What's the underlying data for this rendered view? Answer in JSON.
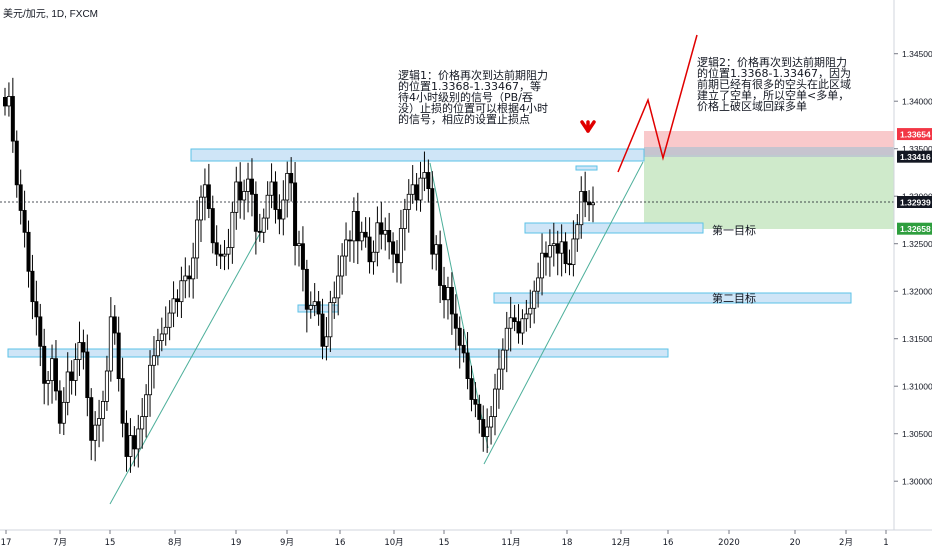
{
  "symbol_label": "美元/加元, 1D, FXCM",
  "annotations": {
    "note1": "逻辑1：价格再次到达前期阻力的位置1.3368-1.33467，等待4小时级别的信号（PB/吞没）止损的位置可以根据4小时的信号，相应的设置止损点",
    "note2": "逻辑2：价格再次到达前期阻力的位置1.3368-1.33467，因为前期已经有很多的空头在此区域建立了空单，所以空单<多单，价格上破区域回踩多单",
    "target1": "第一目标",
    "target2": "第二目标"
  },
  "colors": {
    "up_candle": "#ffffff",
    "down_candle": "#000000",
    "zone_fill": "#cfe5f7",
    "zone_stroke": "#5bc2e7",
    "trendline": "#4caf9a",
    "arrow": "#e00000",
    "stop_zone": "#f9c9cb",
    "profit_zone": "#cfeacb",
    "stop_badge": "#f23645",
    "target_badge": "#2e9e3e",
    "price_badge": "#131722"
  },
  "chart_data": {
    "type": "candlestick",
    "x_tick_labels": [
      "17",
      "7月",
      "15",
      "8月",
      "19",
      "9月",
      "16",
      "10月",
      "15",
      "11月",
      "18",
      "12月",
      "16",
      "2020",
      "20",
      "2月",
      "1"
    ],
    "y_tick_labels": [
      "1.34500",
      "1.34000",
      "1.33500",
      "1.33000",
      "1.32500",
      "1.32000",
      "1.31500",
      "1.31000",
      "1.30500",
      "1.30000"
    ],
    "ylim": [
      1.2965,
      1.35
    ],
    "price_badges": [
      {
        "label": "1.33654",
        "value": 1.33654,
        "role": "stop"
      },
      {
        "label": "1.33416",
        "value": 1.33416,
        "role": "entry"
      },
      {
        "label": "1.32939",
        "value": 1.32939,
        "role": "last"
      },
      {
        "label": "1.32658",
        "value": 1.32658,
        "role": "target"
      }
    ],
    "resistance_zone": [
      1.3368,
      1.33467
    ],
    "zones": [
      {
        "name": "resistance",
        "low": 1.3333,
        "high": 1.3348
      },
      {
        "name": "first-target",
        "low": 1.3261,
        "high": 1.3271
      },
      {
        "name": "second-target",
        "low": 1.3192,
        "high": 1.3202
      },
      {
        "name": "mid-zone",
        "low": 1.3182,
        "high": 1.3189
      },
      {
        "name": "support",
        "low": 1.3139,
        "high": 1.3147
      },
      {
        "name": "small-zone",
        "low": 1.3321,
        "high": 1.3325
      }
    ],
    "closes": [
      1.3395,
      1.3405,
      1.3358,
      1.3312,
      1.3285,
      1.3262,
      1.3221,
      1.3189,
      1.3173,
      1.3142,
      1.3103,
      1.3106,
      1.3129,
      1.3095,
      1.3061,
      1.3083,
      1.3115,
      1.3106,
      1.3128,
      1.3146,
      1.3136,
      1.3088,
      1.3043,
      1.3059,
      1.3066,
      1.3084,
      1.3116,
      1.3173,
      1.3156,
      1.3108,
      1.3061,
      1.3026,
      1.3048,
      1.3034,
      1.3055,
      1.3068,
      1.3091,
      1.3122,
      1.3132,
      1.3148,
      1.3155,
      1.3162,
      1.3177,
      1.3192,
      1.3189,
      1.3211,
      1.3216,
      1.3213,
      1.3235,
      1.3275,
      1.3299,
      1.3312,
      1.3287,
      1.3251,
      1.3239,
      1.3237,
      1.3239,
      1.3246,
      1.3283,
      1.3315,
      1.3296,
      1.3305,
      1.3318,
      1.3302,
      1.3263,
      1.3262,
      1.3277,
      1.3301,
      1.3315,
      1.3286,
      1.3276,
      1.3296,
      1.3324,
      1.3314,
      1.3248,
      1.325,
      1.3223,
      1.3181,
      1.3185,
      1.3189,
      1.3176,
      1.3142,
      1.3152,
      1.3188,
      1.3193,
      1.3216,
      1.3237,
      1.3254,
      1.3253,
      1.3284,
      1.3253,
      1.3262,
      1.3257,
      1.3231,
      1.3241,
      1.3272,
      1.326,
      1.3264,
      1.3252,
      1.3239,
      1.323,
      1.3266,
      1.3286,
      1.3302,
      1.3312,
      1.3296,
      1.3319,
      1.3325,
      1.3308,
      1.3239,
      1.3249,
      1.3206,
      1.3191,
      1.3204,
      1.3176,
      1.3161,
      1.3143,
      1.3135,
      1.3108,
      1.3086,
      1.3081,
      1.3065,
      1.3047,
      1.3057,
      1.3068,
      1.3097,
      1.3118,
      1.3138,
      1.3161,
      1.3172,
      1.3168,
      1.3156,
      1.3171,
      1.3176,
      1.3182,
      1.32,
      1.3214,
      1.324,
      1.3236,
      1.3248,
      1.325,
      1.324,
      1.3252,
      1.3229,
      1.3228,
      1.3255,
      1.327,
      1.3305,
      1.3294,
      1.3291,
      1.3293
    ]
  }
}
